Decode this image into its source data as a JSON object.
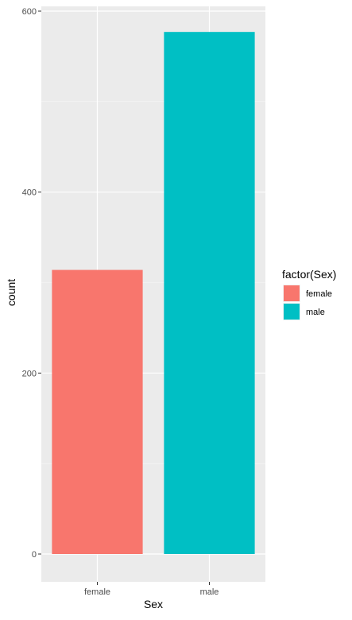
{
  "chart_data": {
    "type": "bar",
    "categories": [
      "female",
      "male"
    ],
    "values": [
      314,
      577
    ],
    "colors": [
      "#F8766D",
      "#00BFC4"
    ],
    "xlabel": "Sex",
    "ylabel": "count",
    "ylim": [
      0,
      600
    ],
    "yticks": [
      0,
      200,
      400,
      600
    ],
    "grid": true,
    "legend": {
      "title": "factor(Sex)",
      "placement": "right",
      "entries": [
        "female",
        "male"
      ]
    }
  }
}
